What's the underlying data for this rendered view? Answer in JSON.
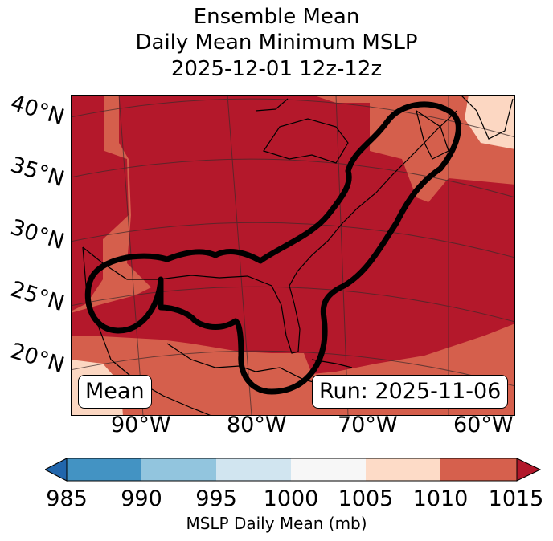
{
  "title": {
    "line1": "Ensemble Mean",
    "line2": "Daily Mean Minimum MSLP",
    "line3": "2025-12-01 12z-12z"
  },
  "map": {
    "lat_labels": [
      "40°N",
      "35°N",
      "30°N",
      "25°N",
      "20°N"
    ],
    "lon_labels": [
      "90°W",
      "80°W",
      "70°W",
      "60°W"
    ],
    "mean_box": "Mean",
    "run_box": "Run: 2025-11-06",
    "colors": {
      "band_1005_1010": "#fcd7c2",
      "band_1010_1015": "#d55f4c",
      "band_above_1015": "#b4182b",
      "contour": "#000000",
      "coastline": "#000000"
    }
  },
  "colorbar": {
    "ticks": [
      "985",
      "990",
      "995",
      "1000",
      "1005",
      "1010",
      "1015"
    ],
    "colors": [
      "#2166ac",
      "#4393c3",
      "#92c5de",
      "#d1e5f0",
      "#f7f7f7",
      "#fddbc7",
      "#d6604d",
      "#b2182b"
    ],
    "label": "MSLP Daily Mean (mb)"
  }
}
